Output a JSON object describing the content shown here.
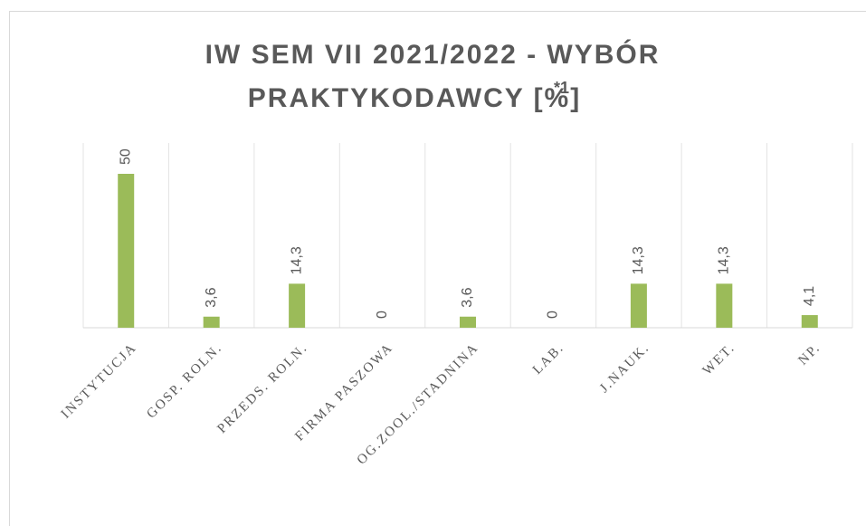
{
  "chart_data": {
    "type": "bar",
    "title": [
      "IW SEM VII 2021/2022 - WYBÓR",
      "PRAKTYKODAWCY [%]"
    ],
    "title_superscript": "*1",
    "categories": [
      "INSTYTUCJA",
      "GOSP. ROLN.",
      "PRZEDS. ROLN.",
      "FIRMA PASZOWA",
      "OG.ZOOL./STADNINA",
      "LAB.",
      "J.NAUK.",
      "WET.",
      "NP."
    ],
    "values": [
      50,
      3.6,
      14.3,
      0,
      3.6,
      0,
      14.3,
      14.3,
      4.1
    ],
    "value_labels": [
      "50",
      "3,6",
      "14,3",
      "0",
      "3,6",
      "0",
      "14,3",
      "14,3",
      "4,1"
    ],
    "color": "#9bbb59",
    "ylim": [
      0,
      60
    ],
    "grid": true
  }
}
